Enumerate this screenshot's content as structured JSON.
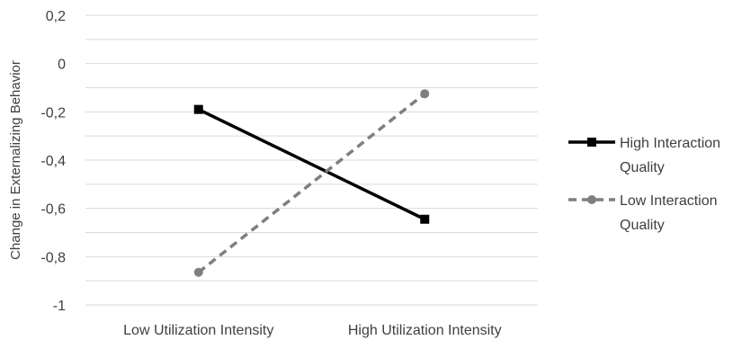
{
  "chart_data": {
    "type": "line",
    "title": "",
    "xlabel": "",
    "ylabel": "Change in Externalizing Behavior",
    "categories": [
      "Low Utilization Intensity",
      "High Utilization Intensity"
    ],
    "ylim": [
      -1,
      0.2
    ],
    "yticks": [
      0.2,
      0,
      -0.2,
      -0.4,
      -0.6,
      -0.8,
      -1
    ],
    "ytick_labels": [
      "0,2",
      "0",
      "-0,2",
      "-0,4",
      "-0,6",
      "-0,8",
      "-1"
    ],
    "minor_gridlines": true,
    "legend_position": "right",
    "series": [
      {
        "name_lines": [
          "High Interaction",
          "Quality"
        ],
        "values": [
          -0.19,
          -0.645
        ],
        "color": "#000000",
        "line_style": "solid",
        "marker": "square"
      },
      {
        "name_lines": [
          "Low Interaction",
          "Quality"
        ],
        "values": [
          -0.865,
          -0.125
        ],
        "color": "#7f7f7f",
        "line_style": "dashed",
        "marker": "circle"
      }
    ]
  }
}
